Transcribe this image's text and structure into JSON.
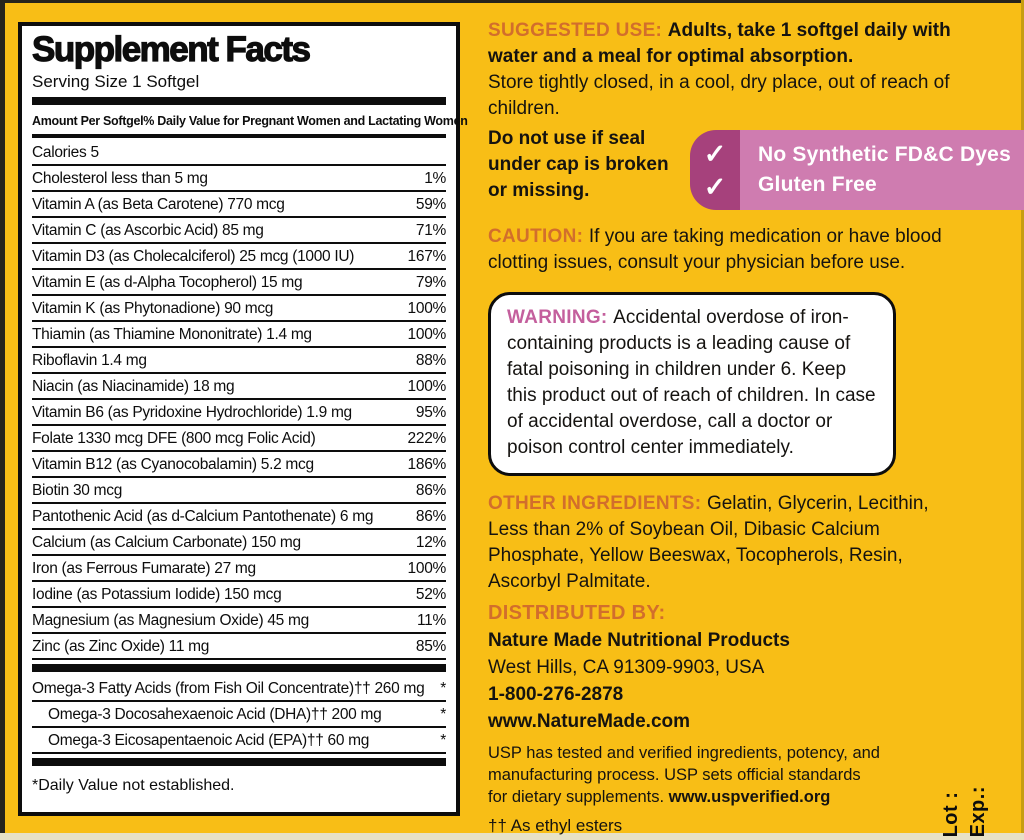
{
  "colors": {
    "background_yellow": "#F8BE16",
    "heading_orange": "#D26E2C",
    "warning_pink": "#C45F9D",
    "badge_dark_pink": "#A6417C",
    "badge_light_pink": "#CF7CB0",
    "panel_black": "#0d0d0d",
    "panel_white": "#ffffff"
  },
  "supplement_facts": {
    "title": "Supplement Facts",
    "serving_size": "Serving Size 1 Softgel",
    "header_left": "Amount Per Softgel",
    "header_right": "% Daily Value for Pregnant Women and Lactating Women",
    "rows": [
      {
        "label": "Calories 5",
        "dv": ""
      },
      {
        "label": "Cholesterol less than 5 mg",
        "dv": "1%"
      },
      {
        "label": "Vitamin A (as Beta Carotene) 770 mcg",
        "dv": "59%"
      },
      {
        "label": "Vitamin C (as Ascorbic Acid) 85 mg",
        "dv": "71%"
      },
      {
        "label": "Vitamin D3 (as Cholecalciferol) 25 mcg (1000 IU)",
        "dv": "167%"
      },
      {
        "label": "Vitamin E (as d-Alpha Tocopherol) 15 mg",
        "dv": "79%"
      },
      {
        "label": "Vitamin K (as Phytonadione) 90 mcg",
        "dv": "100%"
      },
      {
        "label": "Thiamin (as Thiamine Mononitrate) 1.4 mg",
        "dv": "100%"
      },
      {
        "label": "Riboflavin 1.4 mg",
        "dv": "88%"
      },
      {
        "label": "Niacin (as Niacinamide) 18 mg",
        "dv": "100%"
      },
      {
        "label": "Vitamin B6 (as Pyridoxine Hydrochloride) 1.9 mg",
        "dv": "95%"
      },
      {
        "label": "Folate 1330 mcg DFE (800 mcg Folic Acid)",
        "dv": "222%"
      },
      {
        "label": "Vitamin B12 (as Cyanocobalamin) 5.2 mcg",
        "dv": "186%"
      },
      {
        "label": "Biotin 30 mcg",
        "dv": "86%"
      },
      {
        "label": "Pantothenic Acid (as d-Calcium Pantothenate) 6 mg",
        "dv": "86%"
      },
      {
        "label": "Calcium (as Calcium Carbonate) 150 mg",
        "dv": "12%"
      },
      {
        "label": "Iron (as Ferrous Fumarate) 27 mg",
        "dv": "100%"
      },
      {
        "label": "Iodine (as Potassium Iodide) 150 mcg",
        "dv": "52%"
      },
      {
        "label": "Magnesium (as Magnesium Oxide) 45 mg",
        "dv": "11%"
      },
      {
        "label": "Zinc (as Zinc Oxide) 11 mg",
        "dv": "85%"
      },
      {
        "label": "Omega-3 Fatty Acids (from Fish Oil Concentrate)†† 260 mg",
        "dv": "*",
        "bar_before": true
      },
      {
        "label": "Omega-3 Docosahexaenoic Acid (DHA)†† 200 mg",
        "dv": "*",
        "indent": true
      },
      {
        "label": "Omega-3 Eicosapentaenoic Acid (EPA)†† 60 mg",
        "dv": "*",
        "indent": true
      }
    ],
    "footnote": "*Daily Value not established."
  },
  "right": {
    "suggested_use": {
      "heading": "SUGGESTED USE: ",
      "text_bold": "Adults, take 1 softgel daily with water and a meal for optimal absorption.",
      "text_regular": "Store tightly closed, in a cool, dry place, out of reach of children.",
      "text_bold2": "Do not use if seal under cap is broken or missing."
    },
    "badge": {
      "check_glyph": "✓",
      "items": [
        "No Synthetic FD&C Dyes",
        "Gluten Free"
      ]
    },
    "caution": {
      "heading": "CAUTION: ",
      "text": "If you are taking medication or have blood clotting issues, consult your physician before use."
    },
    "warning": {
      "heading": "WARNING: ",
      "text": "Accidental overdose of iron-containing products is a leading cause of fatal poisoning in children under 6. Keep this product out of reach of children. In case of accidental overdose, call a doctor or poison control center immediately."
    },
    "other_ingredients": {
      "heading": "OTHER INGREDIENTS: ",
      "text": "Gelatin, Glycerin, Lecithin, Less than 2% of Soybean Oil, Dibasic Calcium Phosphate, Yellow Beeswax, Tocopherols, Resin, Ascorbyl Palmitate."
    },
    "distributed_by": {
      "heading": "DISTRIBUTED BY:",
      "company": "Nature Made Nutritional Products",
      "address": "West Hills, CA 91309-9903, USA",
      "phone": "1-800-276-2878",
      "website": "www.NatureMade.com"
    },
    "usp": {
      "text": "USP has tested and verified ingredients, potency, and manufacturing process. USP sets official standards for dietary supplements. ",
      "url": "www.uspverified.org",
      "footnote": "†† As ethyl esters"
    },
    "lot_exp": {
      "lot": "Lot :",
      "exp": "Exp.:"
    }
  }
}
